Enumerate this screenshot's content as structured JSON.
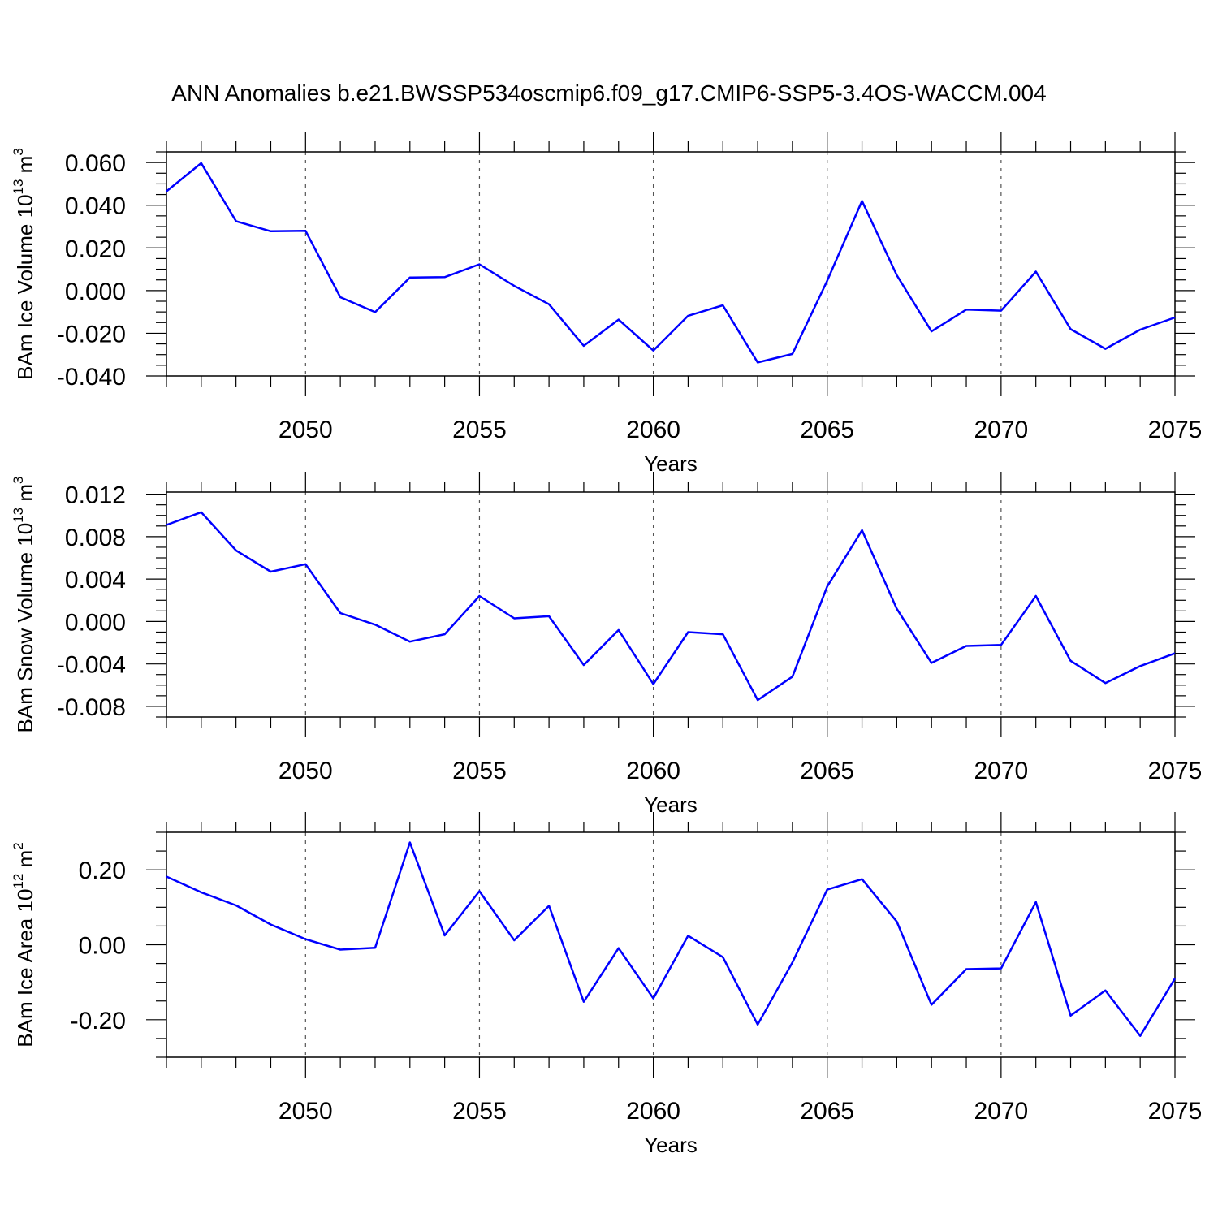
{
  "title": "ANN Anomalies b.e21.BWSSP534oscmip6.f09_g17.CMIP6-SSP5-3.4OS-WACCM.004",
  "line_color": "#0000ff",
  "chart_data": [
    {
      "type": "line",
      "ylabel": {
        "main": "BAm Ice Volume 10",
        "exp": "13",
        "unit": " m",
        "unit_exp": "3"
      },
      "xlabel": "Years",
      "xlim": [
        2046,
        2075
      ],
      "ylim": [
        -0.04,
        0.065
      ],
      "x_ticks": [
        2050,
        2055,
        2060,
        2065,
        2070,
        2075
      ],
      "y_ticks": [
        {
          "v": 0.06,
          "label": "0.060"
        },
        {
          "v": 0.04,
          "label": "0.040"
        },
        {
          "v": 0.02,
          "label": "0.020"
        },
        {
          "v": 0.0,
          "label": "0.000"
        },
        {
          "v": -0.02,
          "label": "-0.020"
        },
        {
          "v": -0.04,
          "label": "-0.040"
        }
      ],
      "y_minor_step": 0.005,
      "x": [
        2046,
        2047,
        2048,
        2049,
        2050,
        2051,
        2052,
        2053,
        2054,
        2055,
        2056,
        2057,
        2058,
        2059,
        2060,
        2061,
        2062,
        2063,
        2064,
        2065,
        2066,
        2067,
        2068,
        2069,
        2070,
        2071,
        2072,
        2073,
        2074,
        2075
      ],
      "values": [
        0.0465,
        0.0597,
        0.0325,
        0.0278,
        0.028,
        -0.0031,
        -0.0101,
        0.0061,
        0.0063,
        0.0123,
        0.0022,
        -0.0064,
        -0.0259,
        -0.0136,
        -0.0281,
        -0.0118,
        -0.0069,
        -0.0337,
        -0.0297,
        0.0046,
        0.042,
        0.0072,
        -0.0191,
        -0.0089,
        -0.0094,
        0.0089,
        -0.0181,
        -0.0273,
        -0.0183,
        -0.0126
      ]
    },
    {
      "type": "line",
      "ylabel": {
        "main": "BAm Snow Volume 10",
        "exp": "13",
        "unit": " m",
        "unit_exp": "3"
      },
      "xlabel": "Years",
      "xlim": [
        2046,
        2075
      ],
      "ylim": [
        -0.009,
        0.0122
      ],
      "x_ticks": [
        2050,
        2055,
        2060,
        2065,
        2070,
        2075
      ],
      "y_ticks": [
        {
          "v": 0.012,
          "label": "0.012"
        },
        {
          "v": 0.008,
          "label": "0.008"
        },
        {
          "v": 0.004,
          "label": "0.004"
        },
        {
          "v": 0.0,
          "label": "0.000"
        },
        {
          "v": -0.004,
          "label": "-0.004"
        },
        {
          "v": -0.008,
          "label": "-0.008"
        }
      ],
      "y_minor_step": 0.001,
      "x": [
        2046,
        2047,
        2048,
        2049,
        2050,
        2051,
        2052,
        2053,
        2054,
        2055,
        2056,
        2057,
        2058,
        2059,
        2060,
        2061,
        2062,
        2063,
        2064,
        2065,
        2066,
        2067,
        2068,
        2069,
        2070,
        2071,
        2072,
        2073,
        2074,
        2075
      ],
      "values": [
        0.0091,
        0.0103,
        0.0067,
        0.0047,
        0.0054,
        0.0008,
        -0.0003,
        -0.0019,
        -0.0012,
        0.0024,
        0.0003,
        0.0005,
        -0.0041,
        -0.0008,
        -0.0059,
        -0.001,
        -0.0012,
        -0.0074,
        -0.0052,
        0.0033,
        0.0086,
        0.0012,
        -0.0039,
        -0.0023,
        -0.0022,
        0.0024,
        -0.0037,
        -0.0058,
        -0.0042,
        -0.003
      ]
    },
    {
      "type": "line",
      "ylabel": {
        "main": "BAm Ice Area 10",
        "exp": "12",
        "unit": " m",
        "unit_exp": "2"
      },
      "xlabel": "Years",
      "xlim": [
        2046,
        2075
      ],
      "ylim": [
        -0.3,
        0.3
      ],
      "x_ticks": [
        2050,
        2055,
        2060,
        2065,
        2070,
        2075
      ],
      "y_ticks": [
        {
          "v": 0.2,
          "label": "0.20"
        },
        {
          "v": 0.0,
          "label": "0.00"
        },
        {
          "v": -0.2,
          "label": "-0.20"
        }
      ],
      "y_minor_step": 0.05,
      "x": [
        2046,
        2047,
        2048,
        2049,
        2050,
        2051,
        2052,
        2053,
        2054,
        2055,
        2056,
        2057,
        2058,
        2059,
        2060,
        2061,
        2062,
        2063,
        2064,
        2065,
        2066,
        2067,
        2068,
        2069,
        2070,
        2071,
        2072,
        2073,
        2074,
        2075
      ],
      "values": [
        0.182,
        0.14,
        0.105,
        0.054,
        0.015,
        -0.013,
        -0.008,
        0.273,
        0.025,
        0.143,
        0.012,
        0.104,
        -0.152,
        -0.009,
        -0.143,
        0.024,
        -0.033,
        -0.213,
        -0.047,
        0.147,
        0.175,
        0.062,
        -0.16,
        -0.065,
        -0.063,
        0.114,
        -0.189,
        -0.122,
        -0.243,
        -0.09
      ]
    }
  ]
}
